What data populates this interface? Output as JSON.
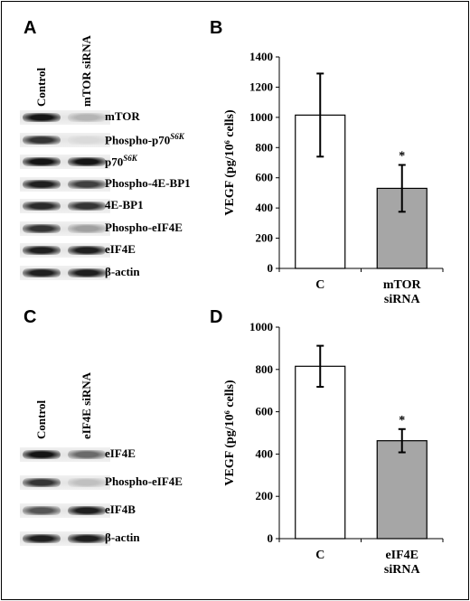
{
  "panel_letters": {
    "a": "A",
    "b": "B",
    "c": "C",
    "d": "D"
  },
  "blot_a": {
    "lanes": [
      "Control",
      "mTOR siRNA"
    ],
    "rows": [
      {
        "label": "mTOR",
        "sup": "",
        "bands": [
          1.0,
          0.25
        ]
      },
      {
        "label": "Phospho-p70",
        "sup": "S6K",
        "bands": [
          0.85,
          0.08
        ]
      },
      {
        "label": "p70",
        "sup": "S6K",
        "bands": [
          1.0,
          1.0
        ]
      },
      {
        "label": "Phospho-4E-BP1",
        "sup": "",
        "bands": [
          0.95,
          0.8
        ]
      },
      {
        "label": "4E-BP1",
        "sup": "",
        "bands": [
          0.9,
          0.85
        ]
      },
      {
        "label": "Phospho-eIF4E",
        "sup": "",
        "bands": [
          0.85,
          0.35
        ]
      },
      {
        "label": "eIF4E",
        "sup": "",
        "bands": [
          0.95,
          0.95
        ]
      },
      {
        "label": "β-actin",
        "sup": "",
        "bands": [
          0.95,
          0.95
        ]
      }
    ]
  },
  "blot_c": {
    "lanes": [
      "Control",
      "eIF4E siRNA"
    ],
    "rows": [
      {
        "label": "eIF4E",
        "sup": "",
        "bands": [
          1.0,
          0.6
        ]
      },
      {
        "label": "Phospho-eIF4E",
        "sup": "",
        "bands": [
          0.85,
          0.2
        ]
      },
      {
        "label": "eIF4B",
        "sup": "",
        "bands": [
          0.7,
          0.95
        ]
      },
      {
        "label": "β-actin",
        "sup": "",
        "bands": [
          0.95,
          0.95
        ]
      }
    ]
  },
  "chart_data": [
    {
      "panel": "B",
      "type": "bar",
      "categories": [
        "C",
        "mTOR siRNA"
      ],
      "category_lines": [
        [
          "C"
        ],
        [
          "mTOR",
          "siRNA"
        ]
      ],
      "values": [
        1015,
        530
      ],
      "errors": [
        275,
        155
      ],
      "colors": [
        "#ffffff",
        "#a6a6a6"
      ],
      "significance": [
        "",
        "*"
      ],
      "ylabel": "VEGF (pg/10⁶ cells)",
      "ylim": [
        0,
        1400
      ],
      "yticks": [
        0,
        200,
        400,
        600,
        800,
        1000,
        1200,
        1400
      ]
    },
    {
      "panel": "D",
      "type": "bar",
      "categories": [
        "C",
        "eIF4E siRNA"
      ],
      "category_lines": [
        [
          "C"
        ],
        [
          "eIF4E",
          "siRNA"
        ]
      ],
      "values": [
        815,
        463
      ],
      "errors": [
        97,
        55
      ],
      "colors": [
        "#ffffff",
        "#a6a6a6"
      ],
      "significance": [
        "",
        "*"
      ],
      "ylabel": "VEGF (pg/10⁶ cells)",
      "ylim": [
        0,
        1000
      ],
      "yticks": [
        0,
        200,
        400,
        600,
        800,
        1000
      ]
    }
  ]
}
